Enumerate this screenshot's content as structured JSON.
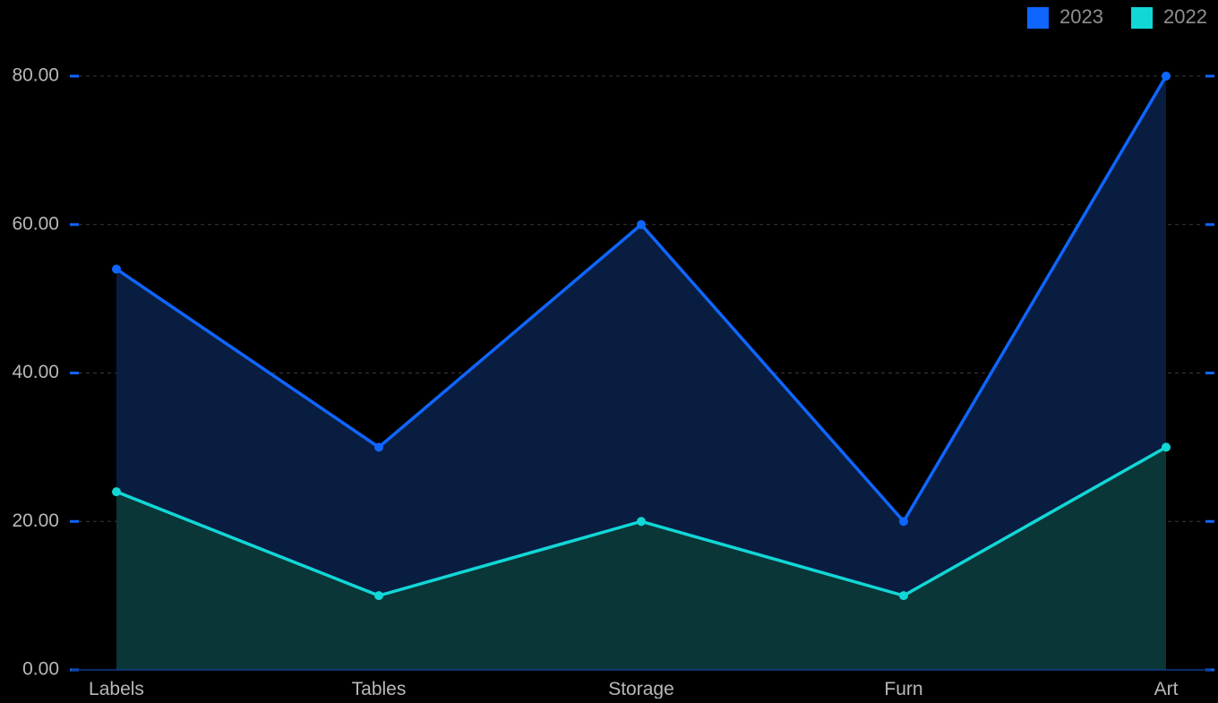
{
  "chart_data": {
    "type": "area",
    "title": "",
    "xlabel": "",
    "ylabel": "",
    "categories": [
      "Labels",
      "Tables",
      "Storage",
      "Furn",
      "Art"
    ],
    "series": [
      {
        "name": "2023",
        "values": [
          54,
          30,
          60,
          20,
          80
        ],
        "color": "#0f66ff",
        "fill": "#0a1f45"
      },
      {
        "name": "2022",
        "values": [
          24,
          10,
          20,
          10,
          30
        ],
        "color": "#12d7d7",
        "fill": "#0b3838"
      }
    ],
    "ylim": [
      0,
      80
    ],
    "yticks": [
      "0.00",
      "20.00",
      "40.00",
      "60.00",
      "80.00"
    ],
    "grid": true,
    "legend_position": "top-right",
    "background": "#000000"
  }
}
